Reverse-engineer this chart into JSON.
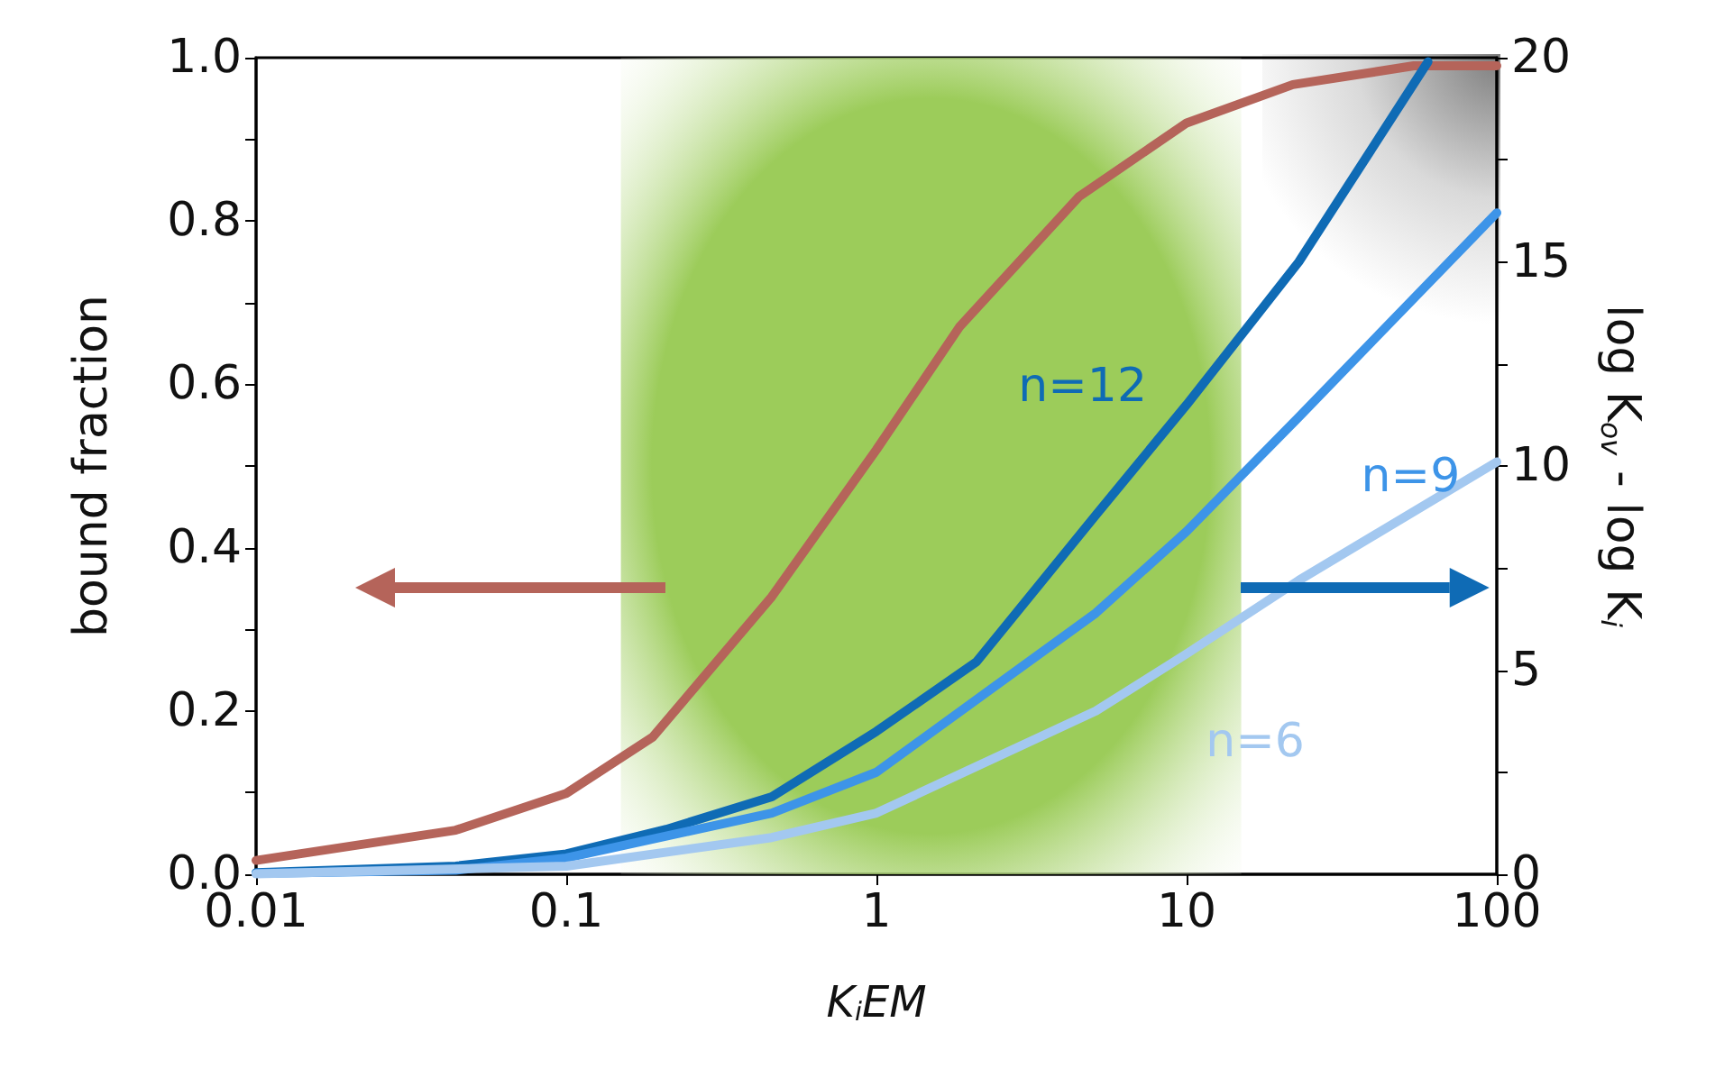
{
  "chart_data": {
    "type": "line",
    "xlabel": "K$_{i}$EM",
    "ylabel": "bound fraction",
    "y2label": "log K$_{ov}$ - log K$_{i}$",
    "log": "x",
    "xlim": [
      0.01,
      100
    ],
    "xticks": [
      0.01,
      0.1,
      1,
      10,
      100
    ],
    "ylim": [
      0,
      1.0
    ],
    "yticks": [
      {
        "value": 0,
        "label": "0.0"
      },
      {
        "value": 0.1,
        "label": null
      },
      0.2,
      {
        "value": 0.3,
        "label": null
      },
      0.4,
      {
        "value": 0.5,
        "label": null
      },
      0.6,
      {
        "value": 0.7,
        "label": null
      },
      0.8,
      {
        "value": 0.9,
        "label": null
      },
      {
        "value": 1.0,
        "label": "1.0"
      }
    ],
    "y2lim": [
      0,
      20
    ],
    "y2ticks": [
      0,
      {
        "value": 2.5,
        "label": null
      },
      5,
      {
        "value": 7.5,
        "label": null
      },
      10,
      {
        "value": 12.5,
        "label": null
      },
      15,
      {
        "value": 17.5,
        "label": null
      },
      20
    ],
    "bands": [
      {
        "axis": "x",
        "from": 0.15,
        "to": 15,
        "color": "#9ccc5a"
      }
    ],
    "grid": false,
    "legend": false,
    "marker": "none",
    "line_style": "solid",
    "series": [
      {
        "color": "#b5645a",
        "x": [
          0.01,
          0.044,
          0.1,
          0.19,
          0.46,
          1,
          1.85,
          4.5,
          10,
          22,
          54,
          100
        ],
        "values": [
          0.017,
          0.054,
          0.099,
          0.168,
          0.34,
          0.52,
          0.67,
          0.83,
          0.92,
          0.967,
          0.99,
          0.99
        ]
      },
      {
        "name": "n=12",
        "axis": "y2",
        "color": "#0f6bb5",
        "x": [
          0.01,
          0.044,
          0.1,
          0.21,
          0.46,
          1,
          2.1,
          5.1,
          10,
          23,
          60
        ],
        "values": [
          0.04,
          0.2,
          0.5,
          1.1,
          1.9,
          3.5,
          5.2,
          8.8,
          11.5,
          15.0,
          19.9
        ]
      },
      {
        "name": "n=9",
        "axis": "y2",
        "color": "#3d94e8",
        "x": [
          0.01,
          0.044,
          0.1,
          0.46,
          1,
          5.1,
          10,
          23,
          100
        ],
        "values": [
          0.02,
          0.1,
          0.4,
          1.5,
          2.5,
          6.4,
          8.4,
          11.2,
          16.2
        ]
      },
      {
        "name": "n=6",
        "axis": "y2",
        "color": "#a3c8f0",
        "x": [
          0.01,
          0.1,
          0.46,
          1,
          5.1,
          10,
          23,
          100
        ],
        "values": [
          0.01,
          0.2,
          0.9,
          1.5,
          4.0,
          5.4,
          7.2,
          10.1
        ]
      }
    ]
  }
}
